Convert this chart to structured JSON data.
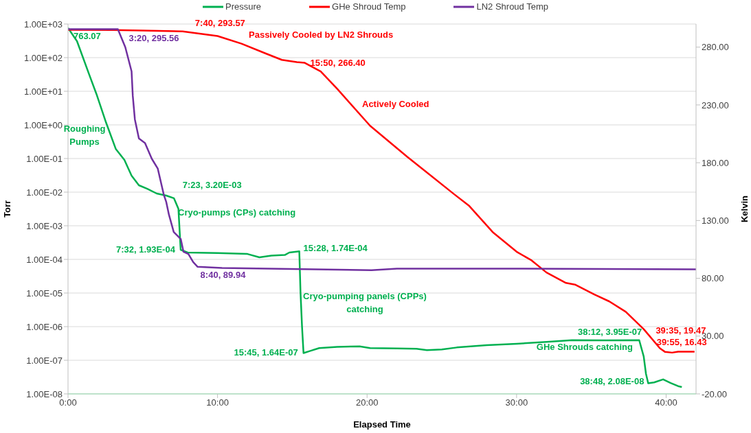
{
  "chart_data": {
    "type": "line",
    "xlabel": "Elapsed Time",
    "ylabel": "Torr",
    "y2label": "Kelvin",
    "xlim": [
      0,
      42
    ],
    "xticks": [
      {
        "value": 0,
        "label": "0:00"
      },
      {
        "value": 10,
        "label": "10:00"
      },
      {
        "value": 20,
        "label": "20:00"
      },
      {
        "value": 30,
        "label": "30:00"
      },
      {
        "value": 40,
        "label": "40:00"
      }
    ],
    "log": "y",
    "ylim": [
      1e-08,
      1000
    ],
    "yticks": [
      {
        "value": 1000,
        "label": "1.00E+03"
      },
      {
        "value": 100,
        "label": "1.00E+02"
      },
      {
        "value": 10,
        "label": "1.00E+01"
      },
      {
        "value": 1,
        "label": "1.00E+00"
      },
      {
        "value": 0.1,
        "label": "1.00E-01"
      },
      {
        "value": 0.01,
        "label": "1.00E-02"
      },
      {
        "value": 0.001,
        "label": "1.00E-03"
      },
      {
        "value": 0.0001,
        "label": "1.00E-04"
      },
      {
        "value": 1e-05,
        "label": "1.00E-05"
      },
      {
        "value": 1e-06,
        "label": "1.00E-06"
      },
      {
        "value": 1e-07,
        "label": "1.00E-07"
      },
      {
        "value": 1e-08,
        "label": "1.00E-08"
      }
    ],
    "y2lim": [
      -20,
      300
    ],
    "y2ticks": [
      {
        "value": -20,
        "label": "-20.00"
      },
      {
        "value": 30,
        "label": "30.00"
      },
      {
        "value": 80,
        "label": "80.00"
      },
      {
        "value": 130,
        "label": "130.00"
      },
      {
        "value": 180,
        "label": "180.00"
      },
      {
        "value": 230,
        "label": "230.00"
      },
      {
        "value": 280,
        "label": "280.00"
      }
    ],
    "grid": "y",
    "legend": "top",
    "annotations": [
      "Roughing Pumps",
      "Cryo-pumps (CPs) catching",
      "Passively Cooled by LN2 Shrouds",
      "Actively Cooled",
      "Cryo-pumping panels (CPPs) catching",
      "GHe Shrouds catching"
    ],
    "series": [
      {
        "name": "Pressure",
        "color": "#00b050",
        "x": [
          0,
          0.6,
          1.42,
          1.9,
          2.55,
          3.2,
          3.77,
          4.25,
          4.74,
          5.3,
          5.93,
          6.57,
          7.08,
          7.383,
          7.533,
          8,
          10,
          12,
          12.8,
          13.6,
          14.5,
          14.8,
          15.467,
          15.55,
          15.65,
          15.75,
          16.2,
          16.8,
          18,
          19.5,
          20.2,
          22,
          23.3,
          24,
          25,
          26,
          28,
          30,
          32,
          33.7,
          36,
          38.2,
          38.5,
          38.65,
          38.8,
          39.2,
          39.8,
          40.3,
          40.8,
          41.05
        ],
        "values": [
          763.07,
          309,
          31,
          8.3,
          1.15,
          0.19,
          0.091,
          0.031,
          0.016,
          0.0126,
          0.0091,
          0.0079,
          0.0066,
          0.0032,
          0.000193,
          0.00016,
          0.000155,
          0.000145,
          0.000115,
          0.00013,
          0.000135,
          0.00016,
          0.000174,
          1e-05,
          1e-06,
          1.64e-07,
          1.9e-07,
          2.3e-07,
          2.5e-07,
          2.6e-07,
          2.3e-07,
          2.25e-07,
          2.2e-07,
          2e-07,
          2.1e-07,
          2.4e-07,
          2.8e-07,
          3.1e-07,
          3.5e-07,
          3.95e-07,
          3.9e-07,
          3.95e-07,
          1.3e-07,
          4e-08,
          2.08e-08,
          2.2e-08,
          2.7e-08,
          2.1e-08,
          1.7e-08,
          1.6e-08
        ],
        "value_labels": [
          "763.07",
          null,
          null,
          null,
          null,
          null,
          null,
          null,
          null,
          null,
          null,
          null,
          null,
          "7:23, 3.20E-03",
          "7:32, 1.93E-04",
          null,
          null,
          null,
          null,
          null,
          null,
          null,
          "15:28, 1.74E-04",
          null,
          null,
          "15:45, 1.64E-07",
          null,
          null,
          null,
          null,
          null,
          null,
          null,
          null,
          null,
          null,
          null,
          null,
          null,
          null,
          null,
          "38:12, 3.95E-07",
          null,
          null,
          "38:48, 2.08E-08",
          null,
          null,
          null,
          null,
          null
        ]
      },
      {
        "name": "GHe Shroud Temp",
        "color": "#ff0000",
        "axis": "y2",
        "x": [
          0,
          3,
          5,
          7.667,
          10,
          11.6,
          13.2,
          14.3,
          15.3,
          15.833,
          16.9,
          18,
          20.2,
          22.7,
          25.8,
          26.8,
          28.4,
          30,
          31,
          32,
          33.3,
          33.9,
          35.2,
          36.2,
          37.3,
          38.5,
          39.583,
          39.917,
          40.4,
          40.8,
          41.9
        ],
        "values": [
          295,
          294.8,
          294.4,
          293.57,
          289.6,
          283,
          274.6,
          269,
          267,
          266.4,
          259,
          244,
          212,
          185,
          153,
          143,
          120,
          103,
          95.5,
          85,
          76,
          74.6,
          66,
          60,
          51,
          36,
          19.47,
          16.43,
          15.7,
          16.5,
          16.5
        ],
        "value_labels": [
          null,
          null,
          null,
          "7:40, 293.57",
          null,
          null,
          null,
          null,
          null,
          "15:50, 266.40",
          null,
          null,
          null,
          null,
          null,
          null,
          null,
          null,
          null,
          null,
          null,
          null,
          null,
          null,
          null,
          null,
          "39:35, 19.47",
          "39:55, 16.43",
          null,
          null,
          null
        ]
      },
      {
        "name": "LN2 Shroud Temp",
        "color": "#7030a0",
        "axis": "y2",
        "x": [
          0,
          3.333,
          3.83,
          4.25,
          4.33,
          4.47,
          4.74,
          5.15,
          5.6,
          6,
          6.4,
          6.57,
          6.75,
          7.07,
          7.54,
          7.72,
          8.05,
          8.37,
          8.667,
          10.3,
          15,
          20.3,
          22,
          30,
          42
        ],
        "values": [
          295.5,
          295.56,
          280,
          259,
          238,
          217.5,
          201,
          197,
          183.5,
          175,
          152.6,
          146,
          135,
          120,
          114,
          103,
          101,
          94,
          89.94,
          89,
          88,
          87,
          88.4,
          88.4,
          87.7
        ],
        "value_labels": [
          null,
          "3:20, 295.56",
          null,
          null,
          null,
          null,
          null,
          null,
          null,
          null,
          null,
          null,
          null,
          null,
          null,
          null,
          null,
          null,
          "8:40, 89.94",
          null,
          null,
          null,
          null,
          null,
          null
        ]
      }
    ]
  }
}
